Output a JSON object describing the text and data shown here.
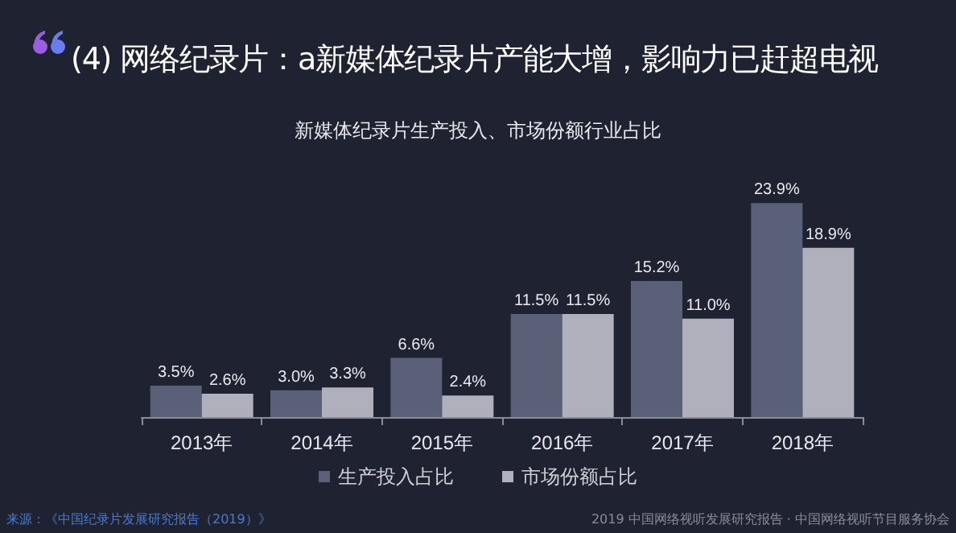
{
  "chart_data": {
    "type": "bar",
    "title": "(4) 网络纪录片：a新媒体纪录片产能大增，影响力已赶超电视",
    "subtitle": "新媒体纪录片生产投入、市场份额行业占比",
    "categories": [
      "2013年",
      "2014年",
      "2015年",
      "2016年",
      "2017年",
      "2018年"
    ],
    "series": [
      {
        "name": "生产投入占比",
        "color": "#5a6078",
        "values": [
          3.5,
          3.0,
          6.6,
          11.5,
          15.2,
          23.9
        ],
        "value_labels": [
          "3.5%",
          "3.0%",
          "6.6%",
          "11.5%",
          "15.2%",
          "23.9%"
        ]
      },
      {
        "name": "市场份额占比",
        "color": "#b0b0bc",
        "values": [
          2.6,
          3.3,
          2.4,
          11.5,
          11.0,
          18.9
        ],
        "value_labels": [
          "2.6%",
          "3.3%",
          "2.4%",
          "11.5%",
          "11.0%",
          "18.9%"
        ]
      }
    ],
    "legend": "bottom",
    "annotations": [
      "来源：《中国纪录片发展研究报告（2019）》",
      "2019 中国网络视听发展研究报告 · 中国网络视听节目服务协会"
    ]
  }
}
